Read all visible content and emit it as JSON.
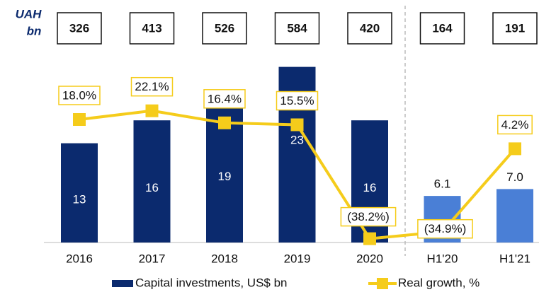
{
  "chart_data": {
    "type": "bar_line",
    "uah_label": [
      "UAH",
      "bn"
    ],
    "uah_values": [
      326,
      413,
      526,
      584,
      420,
      164,
      191
    ],
    "categories": [
      "2016",
      "2017",
      "2018",
      "2019",
      "2020",
      "H1'20",
      "H1'21"
    ],
    "ylim": [
      0,
      25
    ],
    "y2lim": [
      -40,
      50
    ],
    "series": [
      {
        "name": "Capital investments, US$ bn",
        "type": "bar",
        "colors": [
          "#0b2a6e",
          "#0b2a6e",
          "#0b2a6e",
          "#0b2a6e",
          "#0b2a6e",
          "#4a7fd6",
          "#4a7fd6"
        ],
        "values": [
          13,
          16,
          19,
          23,
          16,
          6.1,
          7.0
        ],
        "value_labels": [
          "13",
          "16",
          "19",
          "23",
          "16",
          "6.1",
          "7.0"
        ]
      },
      {
        "name": "Real growth, %",
        "type": "line",
        "axis": "y2",
        "color": "#f5cc1b",
        "values": [
          18.0,
          22.1,
          16.4,
          15.5,
          -38.2,
          -34.9,
          4.2
        ],
        "value_labels": [
          "18.0%",
          "22.1%",
          "16.4%",
          "15.5%",
          "(38.2%)",
          "(34.9%)",
          "4.2%"
        ]
      }
    ]
  }
}
